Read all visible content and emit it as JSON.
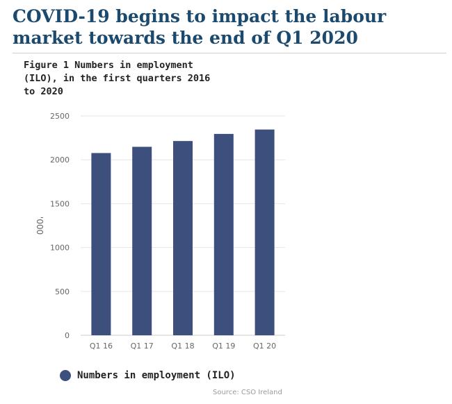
{
  "page": {
    "title": "COVID-19 begins to impact the labour market towards the end of Q1 2020"
  },
  "figure": {
    "caption": "Figure 1 Numbers in employment (ILO), in the first quarters 2016 to 2020",
    "source": "Source: CSO Ireland"
  },
  "chart_data": {
    "type": "bar",
    "title": "Figure 1 Numbers in employment (ILO), in the first quarters 2016 to 2020",
    "xlabel": "",
    "ylabel": "'000",
    "categories": [
      "Q1 16",
      "Q1 17",
      "Q1 18",
      "Q1 19",
      "Q1 20"
    ],
    "series": [
      {
        "name": "Numbers in employment (ILO)",
        "values": [
          2077,
          2148,
          2214,
          2295,
          2345
        ],
        "color": "#3d4f7d"
      }
    ],
    "ylim": [
      0,
      2500
    ],
    "yticks": [
      0,
      500,
      1000,
      1500,
      2000,
      2500
    ],
    "grid": true,
    "legend": "bottom-left"
  },
  "colors": {
    "bar": "#3d4f7d",
    "title": "#1b4a6e",
    "grid": "#e6e6e6",
    "tick_text": "#666666"
  }
}
